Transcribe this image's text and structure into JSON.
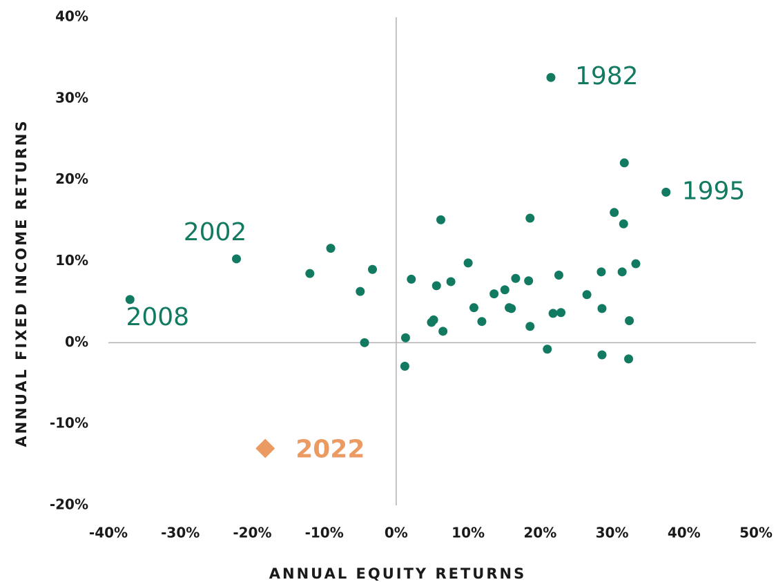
{
  "chart_data": {
    "type": "scatter",
    "x_label": "ANNUAL EQUITY RETURNS",
    "y_label": "ANNUAL FIXED INCOME RETURNS",
    "xlim": [
      -40,
      50
    ],
    "ylim": [
      -20,
      40
    ],
    "xticks": [
      {
        "value": -40,
        "label": "-40%"
      },
      {
        "value": -30,
        "label": "-30%"
      },
      {
        "value": -20,
        "label": "-20%"
      },
      {
        "value": -10,
        "label": "-10%"
      },
      {
        "value": 0,
        "label": "0%"
      },
      {
        "value": 10,
        "label": "10%"
      },
      {
        "value": 20,
        "label": "20%"
      },
      {
        "value": 30,
        "label": "30%"
      },
      {
        "value": 40,
        "label": "40%"
      },
      {
        "value": 50,
        "label": "50%"
      }
    ],
    "yticks": [
      {
        "value": -20,
        "label": "-20%"
      },
      {
        "value": -10,
        "label": "-10%"
      },
      {
        "value": 0,
        "label": "0%"
      },
      {
        "value": 10,
        "label": "10%"
      },
      {
        "value": 20,
        "label": "20%"
      },
      {
        "value": 30,
        "label": "30%"
      },
      {
        "value": 40,
        "label": "40%"
      }
    ],
    "series": [
      {
        "color": "#137a62",
        "marker": "circle",
        "x": [
          21.5,
          31.7,
          37.5,
          30.3,
          31.6,
          6.2,
          18.6,
          -22.2,
          -9.1,
          -12.0,
          -3.3,
          -5.0,
          -37.0,
          -4.4,
          1.3,
          1.2,
          2.1,
          5.6,
          7.6,
          10.0,
          10.8,
          11.9,
          4.9,
          5.2,
          6.5,
          13.6,
          15.1,
          15.7,
          16.0,
          16.6,
          18.4,
          18.6,
          22.6,
          21.8,
          22.9,
          21.0,
          26.5,
          28.5,
          31.4,
          33.3,
          28.6,
          32.4,
          28.6,
          32.3
        ],
        "values": [
          32.6,
          22.1,
          18.5,
          16.0,
          14.6,
          15.1,
          15.3,
          10.3,
          11.6,
          8.5,
          9.0,
          6.3,
          5.3,
          0.0,
          0.6,
          -2.9,
          7.8,
          7.0,
          7.5,
          9.8,
          4.3,
          2.6,
          2.5,
          2.8,
          1.4,
          6.0,
          6.5,
          4.3,
          4.2,
          7.9,
          7.6,
          2.0,
          8.3,
          3.6,
          3.7,
          -0.8,
          5.9,
          8.7,
          8.7,
          9.7,
          4.2,
          2.7,
          -1.5,
          -2.0
        ],
        "labels": [
          "1982",
          null,
          "1995",
          null,
          null,
          null,
          null,
          "2002",
          null,
          null,
          null,
          null,
          "2008",
          null,
          null,
          null,
          null,
          null,
          null,
          null,
          null,
          null,
          null,
          null,
          null,
          null,
          null,
          null,
          null,
          null,
          null,
          null,
          null,
          null,
          null,
          null,
          null,
          null,
          null,
          null,
          null,
          null,
          null,
          null
        ]
      },
      {
        "color": "#eb9a62",
        "marker": "diamond",
        "x": [
          -18.2
        ],
        "values": [
          -13.0
        ],
        "labels": [
          "2022"
        ]
      }
    ]
  }
}
